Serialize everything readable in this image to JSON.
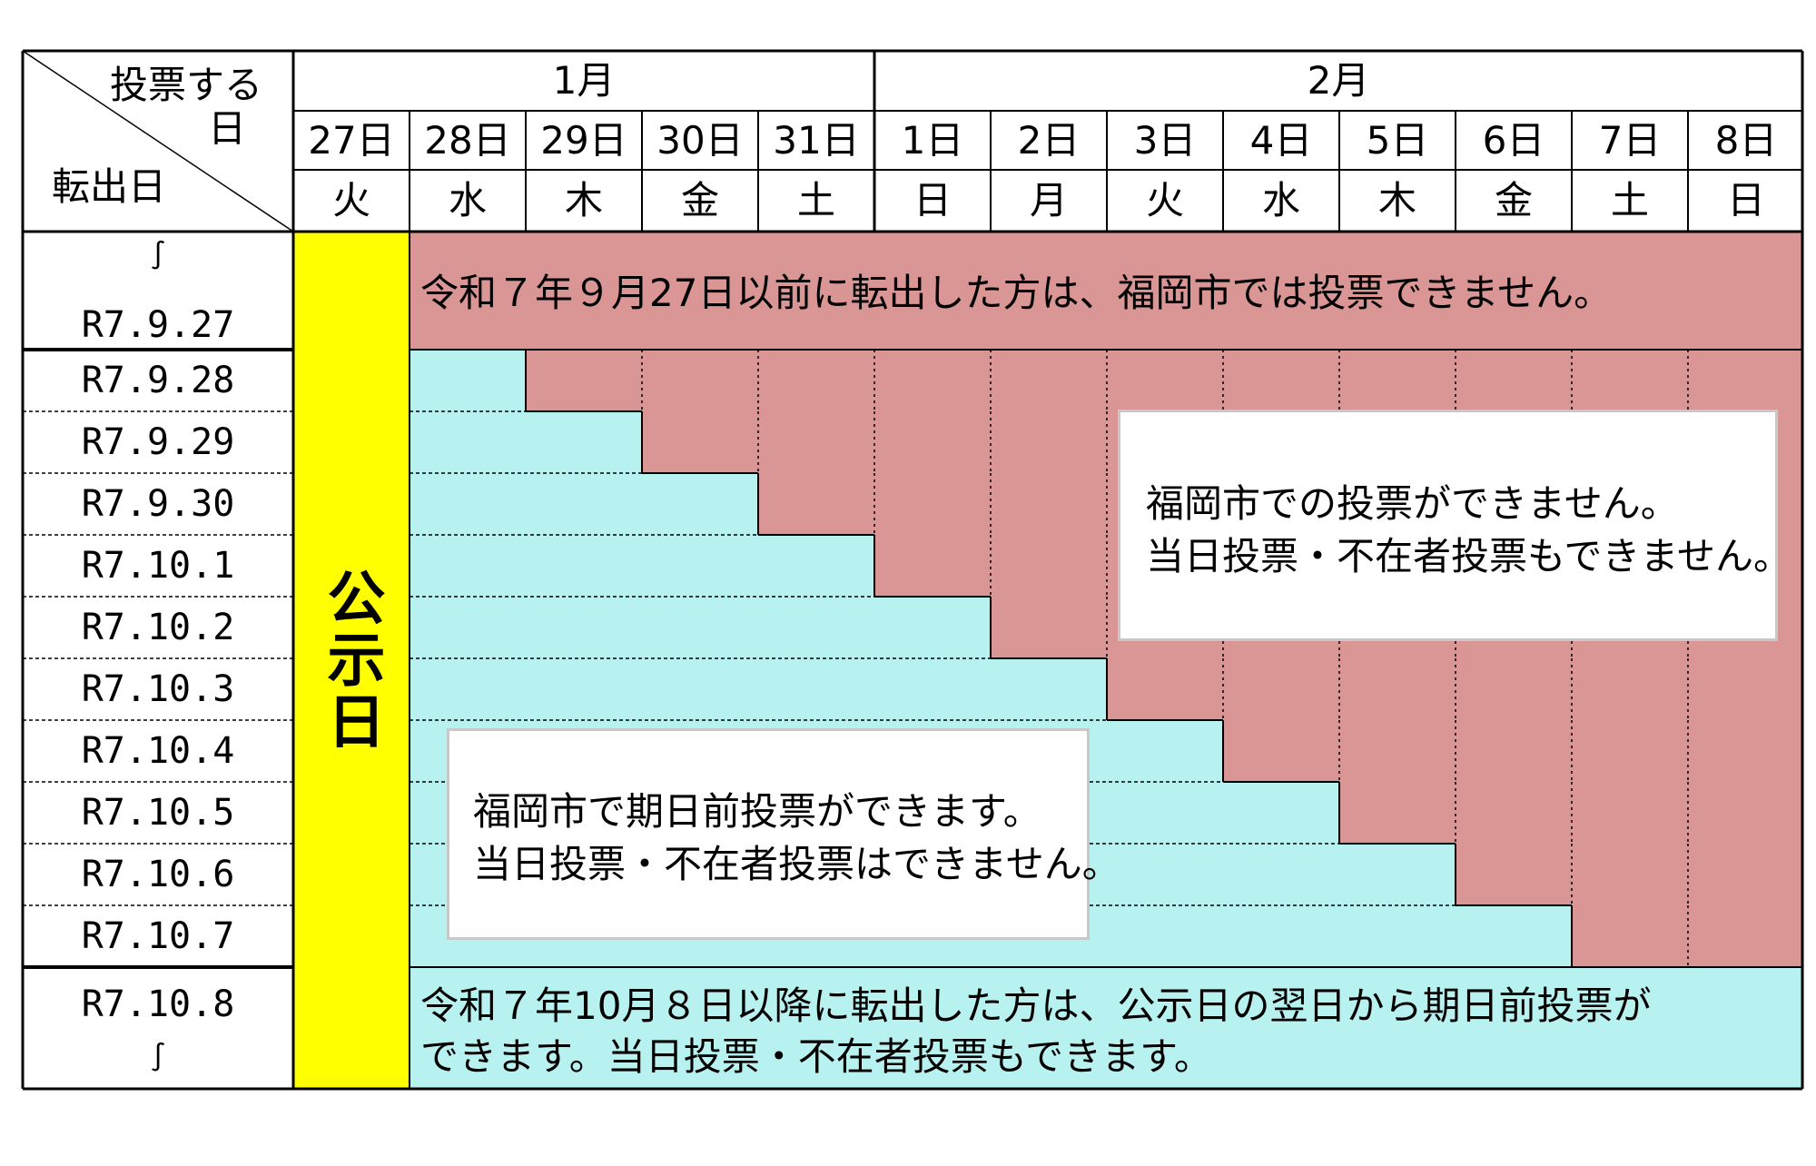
{
  "header": {
    "corner_top_line1": "投票する",
    "corner_top_line2": "日",
    "corner_bottom": "転出日",
    "months": [
      "1月",
      "2月"
    ]
  },
  "days": [
    {
      "date": "27日",
      "weekday": "火"
    },
    {
      "date": "28日",
      "weekday": "水"
    },
    {
      "date": "29日",
      "weekday": "木"
    },
    {
      "date": "30日",
      "weekday": "金"
    },
    {
      "date": "31日",
      "weekday": "土"
    },
    {
      "date": "1日",
      "weekday": "日"
    },
    {
      "date": "2日",
      "weekday": "月"
    },
    {
      "date": "3日",
      "weekday": "火"
    },
    {
      "date": "4日",
      "weekday": "水"
    },
    {
      "date": "5日",
      "weekday": "木"
    },
    {
      "date": "6日",
      "weekday": "金"
    },
    {
      "date": "7日",
      "weekday": "土"
    },
    {
      "date": "8日",
      "weekday": "日"
    }
  ],
  "rows": {
    "first": {
      "tilde": "∫",
      "label": "R7.9.27"
    },
    "middle": [
      "R7.9.28",
      "R7.9.29",
      "R7.9.30",
      "R7.10.1",
      "R7.10.2",
      "R7.10.3",
      "R7.10.4",
      "R7.10.5",
      "R7.10.6",
      "R7.10.7"
    ],
    "last": {
      "label": "R7.10.8",
      "tilde": "∫"
    }
  },
  "notice_day": "公示日",
  "messages": {
    "top_band": "令和７年９月27日以前に転出した方は、福岡市では投票できません。",
    "bottom_band_line1": "令和７年10月８日以降に転出した方は、公示日の翌日から期日前投票が",
    "bottom_band_line2": "できます。当日投票・不在者投票もできます。",
    "cannot_line1": "福岡市での投票ができません。",
    "cannot_line2": "当日投票・不在者投票もできません。",
    "can_line1": "福岡市で期日前投票ができます。",
    "can_line2": "当日投票・不在者投票はできません。"
  },
  "colors": {
    "cannot_vote": "#d99694",
    "can_vote_early": "#b8f2f0",
    "notice_day": "#ffff00",
    "border": "#000000"
  }
}
